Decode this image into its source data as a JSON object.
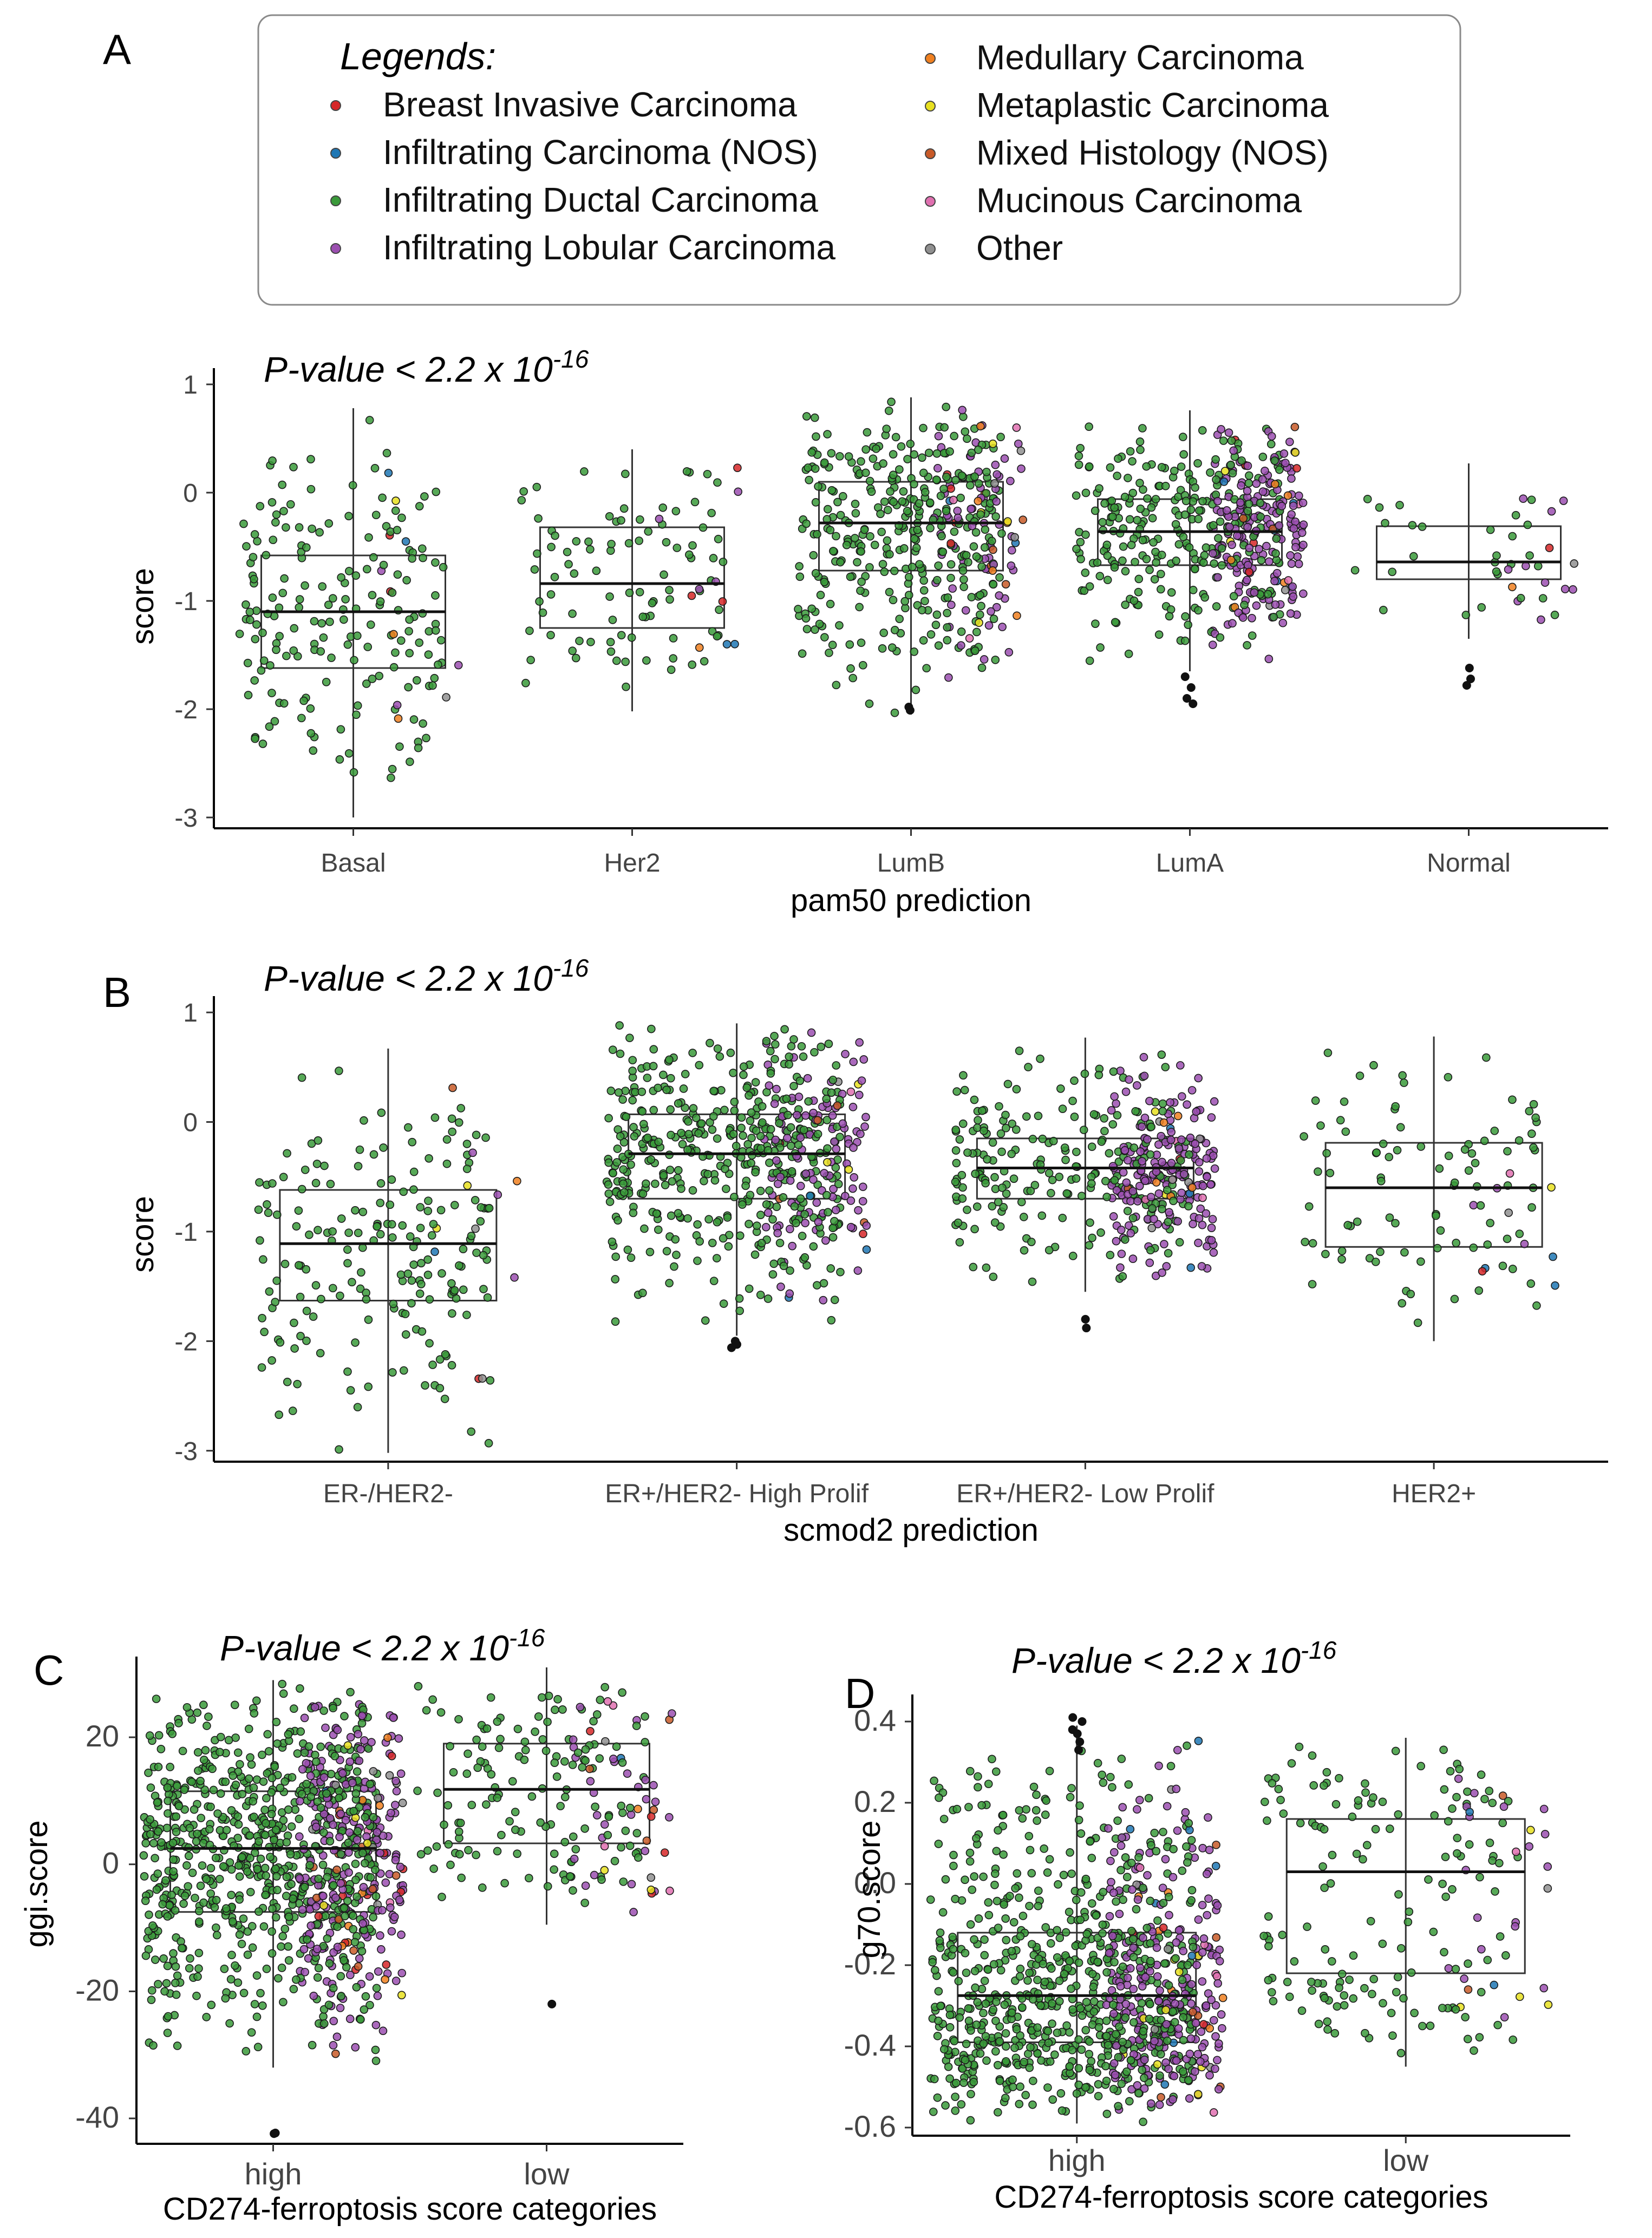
{
  "legend": {
    "title": "Legends:",
    "items": [
      {
        "label": "Breast Invasive Carcinoma",
        "color": "#d62728"
      },
      {
        "label": "Infiltrating Carcinoma (NOS)",
        "color": "#1f77b4"
      },
      {
        "label": "Infiltrating Ductal Carcinoma",
        "color": "#3a9a3a"
      },
      {
        "label": "Infiltrating Lobular Carcinoma",
        "color": "#9b4fb0"
      },
      {
        "label": "Medullary Carcinoma",
        "color": "#f08020"
      },
      {
        "label": "Metaplastic Carcinoma",
        "color": "#e8e020"
      },
      {
        "label": "Mixed Histology (NOS)",
        "color": "#c85a28"
      },
      {
        "label": "Mucinous Carcinoma",
        "color": "#e070b0"
      },
      {
        "label": "Other",
        "color": "#909090"
      }
    ]
  },
  "chart_data": [
    {
      "panel": "A",
      "type": "box",
      "annotation": "P-value < 2.2 x 10-16",
      "annotation_main": "P-value < 2.2 x 10",
      "annotation_exp": "-16",
      "xlabel": "pam50 prediction",
      "ylabel": "score",
      "ylim": [
        -3.1,
        1.05
      ],
      "yticks": [
        "1",
        "0",
        "-1",
        "-2",
        "-3"
      ],
      "ytick_values": [
        1,
        0,
        -1,
        -2,
        -3
      ],
      "categories": [
        "Basal",
        "Her2",
        "LumB",
        "LumA",
        "Normal"
      ],
      "boxes": [
        {
          "q1": -1.62,
          "median": -1.1,
          "q3": -0.58,
          "lo": -3.0,
          "hi": 0.78,
          "n": 190,
          "lobular_frac": 0.03,
          "outliers": []
        },
        {
          "q1": -1.25,
          "median": -0.84,
          "q3": -0.32,
          "lo": -2.02,
          "hi": 0.4,
          "n": 100,
          "lobular_frac": 0.05,
          "outliers": []
        },
        {
          "q1": -0.72,
          "median": -0.28,
          "q3": 0.1,
          "lo": -2.05,
          "hi": 0.88,
          "n": 430,
          "lobular_frac": 0.15,
          "outliers": [
            -1.98,
            -2.01
          ]
        },
        {
          "q1": -0.67,
          "median": -0.36,
          "q3": -0.06,
          "lo": -1.65,
          "hi": 0.76,
          "n": 470,
          "lobular_frac": 0.38,
          "outliers": [
            -1.7,
            -1.8,
            -1.9,
            -1.95
          ]
        },
        {
          "q1": -0.8,
          "median": -0.64,
          "q3": -0.31,
          "lo": -1.35,
          "hi": 0.27,
          "n": 40,
          "lobular_frac": 0.25,
          "outliers": [
            -1.62,
            -1.72,
            -1.78
          ]
        }
      ]
    },
    {
      "panel": "B",
      "type": "box",
      "annotation": "P-value < 2.2 x 10-16",
      "annotation_main": "P-value < 2.2 x 10",
      "annotation_exp": "-16",
      "xlabel": "scmod2 prediction",
      "ylabel": "score",
      "ylim": [
        -3.1,
        1.05
      ],
      "yticks": [
        "1",
        "0",
        "-1",
        "-2",
        "-3"
      ],
      "ytick_values": [
        1,
        0,
        -1,
        -2,
        -3
      ],
      "categories": [
        "ER-/HER2-",
        "ER+/HER2- High Prolif",
        "ER+/HER2- Low Prolif",
        "HER2+"
      ],
      "boxes": [
        {
          "q1": -1.63,
          "median": -1.11,
          "q3": -0.62,
          "lo": -3.02,
          "hi": 0.67,
          "n": 200,
          "lobular_frac": 0.03,
          "outliers": []
        },
        {
          "q1": -0.7,
          "median": -0.29,
          "q3": 0.07,
          "lo": -1.95,
          "hi": 0.9,
          "n": 560,
          "lobular_frac": 0.2,
          "outliers": [
            -2.0,
            -2.03,
            -2.06
          ]
        },
        {
          "q1": -0.7,
          "median": -0.42,
          "q3": -0.15,
          "lo": -1.55,
          "hi": 0.77,
          "n": 420,
          "lobular_frac": 0.42,
          "outliers": [
            -1.8,
            -1.88
          ]
        },
        {
          "q1": -1.14,
          "median": -0.6,
          "q3": -0.19,
          "lo": -2.0,
          "hi": 0.78,
          "n": 100,
          "lobular_frac": 0.02,
          "outliers": []
        }
      ]
    },
    {
      "panel": "C",
      "type": "box",
      "annotation": "P-value < 2.2 x 10-16",
      "annotation_main": "P-value < 2.2 x 10",
      "annotation_exp": "-16",
      "xlabel": "CD274-ferroptosis score categories",
      "ylabel": "ggi.score",
      "ylim": [
        -44,
        31
      ],
      "yticks": [
        "20",
        "0",
        "-20",
        "-40"
      ],
      "ytick_values": [
        20,
        0,
        -20,
        -40
      ],
      "categories": [
        "high",
        "low"
      ],
      "boxes": [
        {
          "q1": -7.5,
          "median": 2.5,
          "q3": 11.5,
          "lo": -32,
          "hi": 29,
          "n": 1000,
          "lobular_frac": 0.22,
          "outliers": [
            -42.3,
            -42.4
          ]
        },
        {
          "q1": 3.3,
          "median": 11.8,
          "q3": 19.0,
          "lo": -9.5,
          "hi": 31,
          "n": 190,
          "lobular_frac": 0.16,
          "outliers": [
            -22.0
          ]
        }
      ]
    },
    {
      "panel": "D",
      "type": "box",
      "annotation": "P-value < 2.2 x 10-16",
      "annotation_main": "P-value < 2.2 x 10",
      "annotation_exp": "-16",
      "xlabel": "CD274-ferroptosis score categories",
      "ylabel": "g70.score",
      "ylim": [
        -0.62,
        0.44
      ],
      "yticks": [
        "0.4",
        "0.2",
        "0.0",
        "-0.2",
        "-0.4",
        "-0.6"
      ],
      "ytick_values": [
        0.4,
        0.2,
        0.0,
        -0.2,
        -0.4,
        -0.6
      ],
      "categories": [
        "high",
        "low"
      ],
      "boxes": [
        {
          "q1": -0.39,
          "median": -0.275,
          "q3": -0.12,
          "lo": -0.59,
          "hi": 0.39,
          "n": 1000,
          "lobular_frac": 0.22,
          "outliers": [
            0.33,
            0.35,
            0.37,
            0.38,
            0.4,
            0.41
          ]
        },
        {
          "q1": -0.22,
          "median": 0.03,
          "q3": 0.16,
          "lo": -0.45,
          "hi": 0.36,
          "n": 180,
          "lobular_frac": 0.18,
          "outliers": []
        }
      ]
    }
  ]
}
